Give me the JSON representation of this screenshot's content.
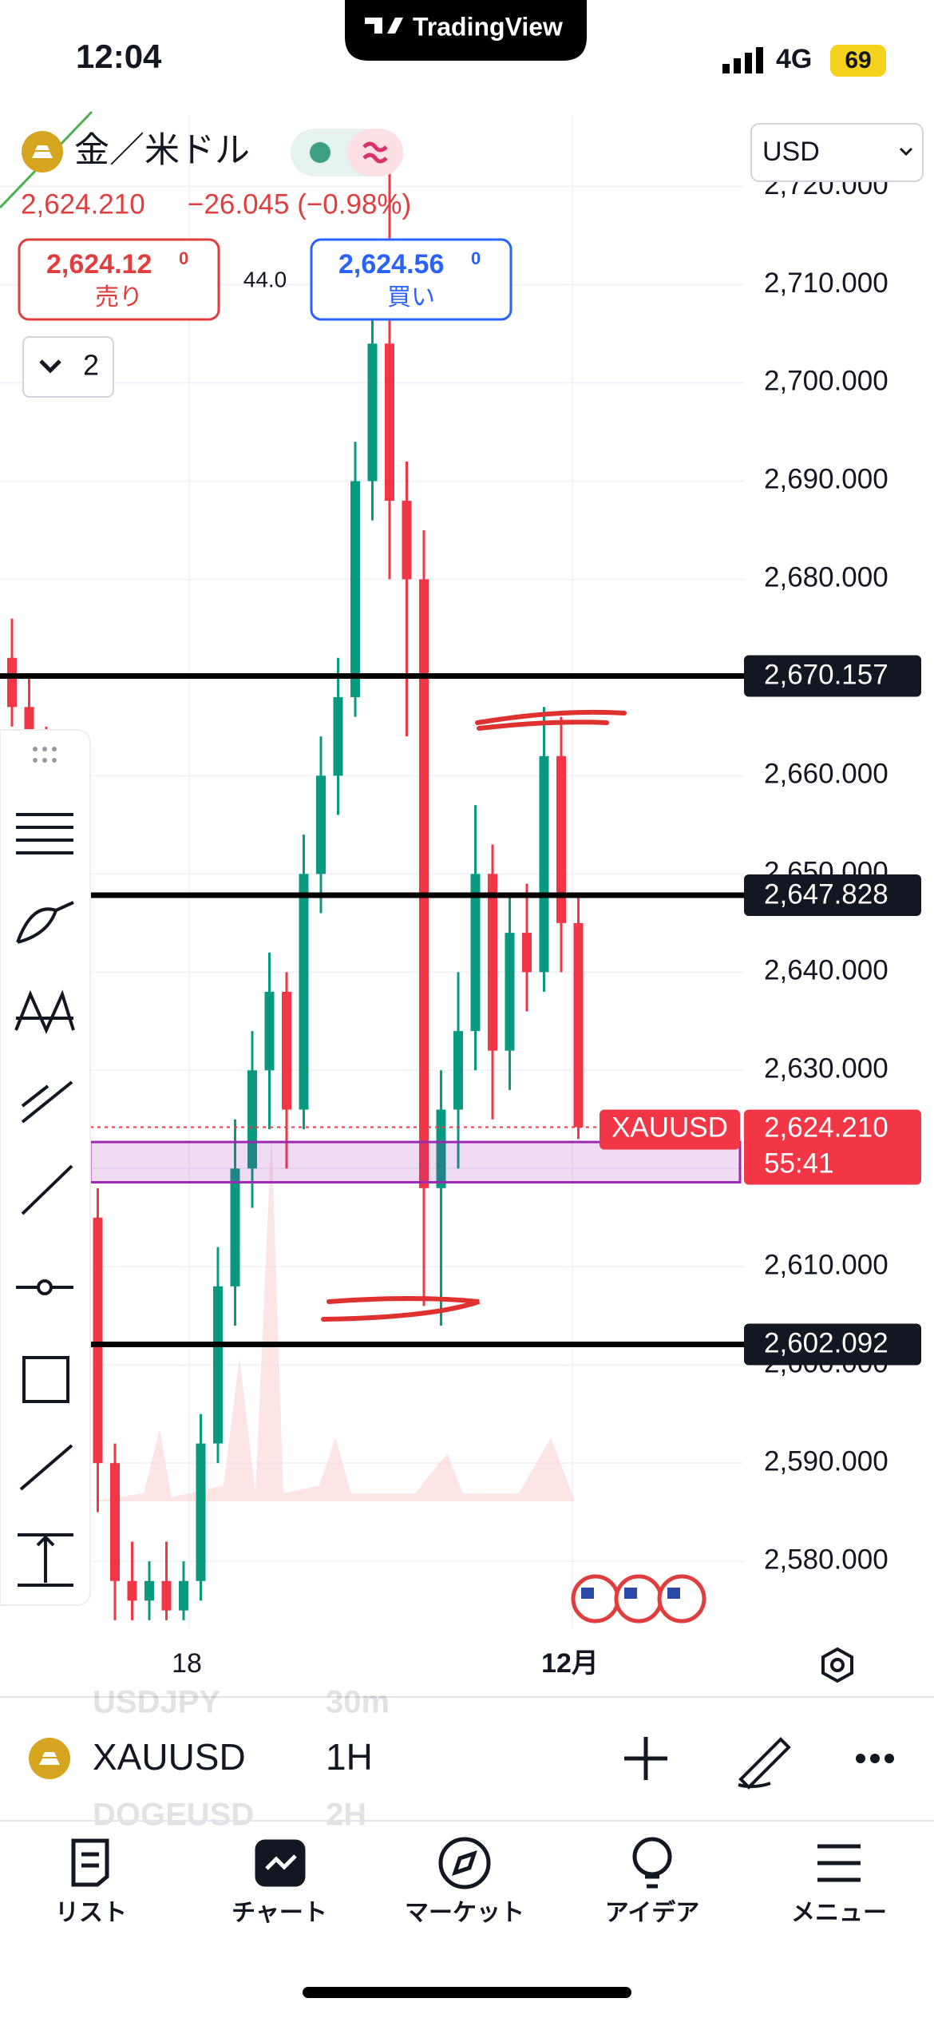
{
  "status_bar": {
    "time": "12:04",
    "network": "4G",
    "battery": "69"
  },
  "app_badge": "TradingView",
  "symbol_header": {
    "name": "金／米ドル",
    "last": "2,624.210",
    "change": "−26.045 (−0.98%)"
  },
  "order": {
    "sell_price": "2,624.12",
    "sell_price_sup": "0",
    "sell_label": "売り",
    "spread": "44.0",
    "buy_price": "2,624.56",
    "buy_price_sup": "0",
    "buy_label": "買い"
  },
  "indicator_toggle": "2",
  "currency": "USD",
  "chart": {
    "type": "candlestick",
    "ylim": [
      2573.1,
      2727.2
    ],
    "yticks": [
      {
        "value": 2580,
        "label": "2,580.000"
      },
      {
        "value": 2590,
        "label": "2,590.000"
      },
      {
        "value": 2600,
        "label": "2,600.000"
      },
      {
        "value": 2610,
        "label": "2,610.000"
      },
      {
        "value": 2620,
        "label": "2,620.000"
      },
      {
        "value": 2630,
        "label": "2,630.000"
      },
      {
        "value": 2640,
        "label": "2,640.000"
      },
      {
        "value": 2650,
        "label": "2,650.000"
      },
      {
        "value": 2660,
        "label": "2,660.000"
      },
      {
        "value": 2670,
        "label": "2,670.000"
      },
      {
        "value": 2680,
        "label": "2,680.000"
      },
      {
        "value": 2690,
        "label": "2,690.000"
      },
      {
        "value": 2700,
        "label": "2,700.000"
      },
      {
        "value": 2710,
        "label": "2,710.000"
      },
      {
        "value": 2720,
        "label": "2,720.000"
      }
    ],
    "up_color": "#089981",
    "down_color": "#f23645",
    "candles": [
      [
        2672,
        2676,
        2665,
        2667
      ],
      [
        2667,
        2670,
        2660,
        2662
      ],
      [
        2662,
        2665,
        2655,
        2658
      ],
      [
        2658,
        2660,
        2640,
        2645
      ],
      [
        2645,
        2648,
        2610,
        2615
      ],
      [
        2615,
        2618,
        2585,
        2590
      ],
      [
        2590,
        2592,
        2574,
        2578
      ],
      [
        2578,
        2582,
        2574,
        2576
      ],
      [
        2576,
        2580,
        2574,
        2578
      ],
      [
        2578,
        2582,
        2574,
        2575
      ],
      [
        2575,
        2580,
        2574,
        2578
      ],
      [
        2578,
        2595,
        2576,
        2592
      ],
      [
        2592,
        2612,
        2590,
        2608
      ],
      [
        2608,
        2625,
        2604,
        2620
      ],
      [
        2620,
        2634,
        2616,
        2630
      ],
      [
        2630,
        2642,
        2624,
        2638
      ],
      [
        2638,
        2640,
        2620,
        2626
      ],
      [
        2626,
        2654,
        2624,
        2650
      ],
      [
        2650,
        2664,
        2646,
        2660
      ],
      [
        2660,
        2672,
        2656,
        2668
      ],
      [
        2668,
        2694,
        2666,
        2690
      ],
      [
        2690,
        2710,
        2686,
        2704
      ],
      [
        2704,
        2722,
        2680,
        2688
      ],
      [
        2688,
        2692,
        2664,
        2680
      ],
      [
        2680,
        2685,
        2606,
        2618
      ],
      [
        2618,
        2630,
        2604,
        2626
      ],
      [
        2626,
        2640,
        2620,
        2634
      ],
      [
        2634,
        2657,
        2630,
        2650
      ],
      [
        2650,
        2653,
        2625,
        2632
      ],
      [
        2632,
        2648,
        2628,
        2644
      ],
      [
        2644,
        2649,
        2636,
        2640
      ],
      [
        2640,
        2667,
        2638,
        2662
      ],
      [
        2662,
        2666,
        2640,
        2645
      ],
      [
        2645,
        2648,
        2623,
        2624.21
      ]
    ],
    "levels": [
      {
        "value": 2670.157,
        "label": "2,670.157"
      },
      {
        "value": 2647.828,
        "label": "2,647.828"
      },
      {
        "value": 2602.092,
        "label": "2,602.092"
      }
    ],
    "zone": [
      2618.6,
      2622.7
    ],
    "last_price": {
      "value": 2624.21,
      "label": "2,624.210"
    },
    "countdown": "55:41",
    "symbol_tag": "XAUUSD",
    "x_labels": [
      "18",
      "12月"
    ]
  },
  "watchlist": [
    {
      "symbol": "USDJPY",
      "interval": "30m"
    },
    {
      "symbol": "XAUUSD",
      "interval": "1H"
    },
    {
      "symbol": "DOGEUSD",
      "interval": "2H"
    }
  ],
  "tabs": [
    "リスト",
    "チャート",
    "マーケット",
    "アイデア",
    "メニュー"
  ]
}
